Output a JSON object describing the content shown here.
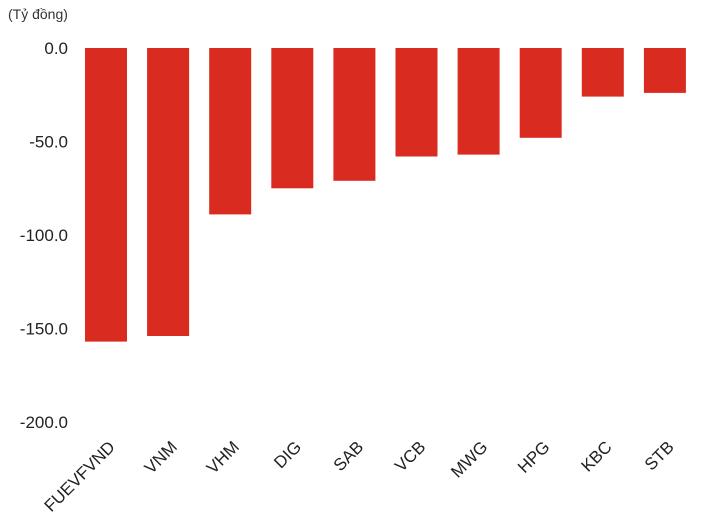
{
  "chart_data": {
    "type": "bar",
    "unit_label": "(Tỷ đồng)",
    "categories": [
      "FUEVFVND",
      "VNM",
      "VHM",
      "DIG",
      "SAB",
      "VCB",
      "MWG",
      "HPG",
      "KBC",
      "STB"
    ],
    "values": [
      -157,
      -154,
      -89,
      -75,
      -71,
      -58,
      -57,
      -48,
      -26,
      -24
    ],
    "ylim": [
      -200,
      0
    ],
    "yticks": [
      "0.0",
      "-50.0",
      "-100.0",
      "-150.0",
      "-200.0"
    ],
    "grid": false,
    "legend": "none",
    "colors": {
      "bar": "#d92b1f"
    }
  }
}
